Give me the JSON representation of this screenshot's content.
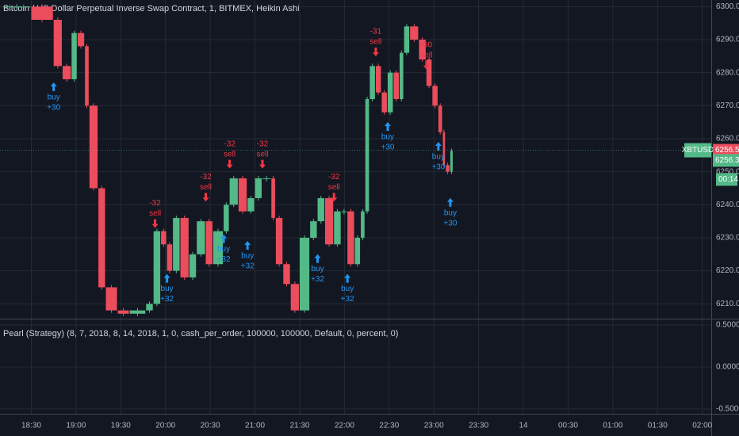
{
  "chart_data": {
    "type": "candlestick",
    "title": "Bitcoin / US Dollar Perpetual Inverse Swap Contract, 1, BITMEX, Heikin Ashi",
    "x": [
      1091,
      1110,
      1125,
      1131,
      1137,
      1141,
      1146,
      1149,
      1155,
      1160,
      1168,
      1176,
      1187,
      1192,
      1197,
      1201,
      1205,
      1210,
      1216,
      1221,
      1227,
      1232,
      1239,
      1243,
      1249,
      1255,
      1260,
      1265,
      1271,
      1274,
      1279,
      1284,
      1290,
      1297,
      1302,
      1307,
      1313,
      1318,
      1322,
      1327,
      1331,
      1334,
      1337,
      1341,
      1345,
      1349,
      1353,
      1357,
      1360,
      1364,
      1370,
      1375,
      1379,
      1383,
      1386,
      1388,
      1391
    ],
    "series": [
      {
        "name": "XBTUSD",
        "up_color": "#53b987",
        "down_color": "#eb4d5c",
        "values": [
          6300,
          6296,
          6282,
          6278,
          6292,
          6288,
          6270,
          6245,
          6215,
          6208,
          6207,
          6208,
          6210,
          6232,
          6228,
          6220,
          6236,
          6218,
          6225,
          6235,
          6222,
          6232,
          6240,
          6248,
          6238,
          6242,
          6248,
          6248,
          6236,
          6222,
          6216,
          6208,
          6230,
          6235,
          6242,
          6228,
          6238,
          6238,
          6222,
          6230,
          6238,
          6272,
          6282,
          6274,
          6268,
          6280,
          6272,
          6286,
          6294,
          6290,
          6284,
          6276,
          6270,
          6262,
          6252,
          6250,
          6256.3
        ]
      }
    ],
    "xlim": [
      1089,
      1566
    ],
    "xticks": [
      {
        "value": 1110,
        "label": "18:30"
      },
      {
        "value": 1140,
        "label": "19:00"
      },
      {
        "value": 1170,
        "label": "19:30"
      },
      {
        "value": 1200,
        "label": "20:00"
      },
      {
        "value": 1230,
        "label": "20:30"
      },
      {
        "value": 1260,
        "label": "21:00"
      },
      {
        "value": 1290,
        "label": "21:30"
      },
      {
        "value": 1320,
        "label": "22:00"
      },
      {
        "value": 1350,
        "label": "22:30"
      },
      {
        "value": 1380,
        "label": "23:00"
      },
      {
        "value": 1410,
        "label": "23:30"
      },
      {
        "value": 1440,
        "label": "14"
      },
      {
        "value": 1470,
        "label": "00:30"
      },
      {
        "value": 1500,
        "label": "01:00"
      },
      {
        "value": 1530,
        "label": "01:30"
      },
      {
        "value": 1560,
        "label": "02:00"
      }
    ],
    "ylim": [
      6205.5,
      6302
    ],
    "yticks": [
      {
        "value": 6210,
        "label": "6210.0"
      },
      {
        "value": 6220,
        "label": "6220.0"
      },
      {
        "value": 6230,
        "label": "6230.0"
      },
      {
        "value": 6240,
        "label": "6240.0"
      },
      {
        "value": 6250,
        "label": "6250.0"
      },
      {
        "value": 6260,
        "label": "6260.0"
      },
      {
        "value": 6270,
        "label": "6270.0"
      },
      {
        "value": 6280,
        "label": "6280.0"
      },
      {
        "value": 6290,
        "label": "6290.0"
      },
      {
        "value": 6300,
        "label": "6300.0"
      }
    ],
    "grid": true,
    "price_tags": [
      {
        "value": 6256.5,
        "color": "#eb4d5c"
      },
      {
        "value": 6256.3,
        "color": "#53b987"
      }
    ],
    "countdown": "00:14",
    "buy_color": "#2196f3",
    "sell_color": "#f23645",
    "signals": [
      {
        "side": "buy",
        "qty": {
          "value": 30,
          "label": "+30"
        },
        "x": 1125,
        "price": 6278
      },
      {
        "side": "sell",
        "qty": -32,
        "x": 1193,
        "price": 6232
      },
      {
        "side": "buy",
        "qty": {
          "value": 32,
          "label": "+32"
        },
        "x": 1201,
        "price": 6220
      },
      {
        "side": "sell",
        "qty": -32,
        "x": 1227,
        "price": 6240
      },
      {
        "side": "buy",
        "qty": {
          "value": 32,
          "label": "+32"
        },
        "x": 1239,
        "price": 6232
      },
      {
        "side": "sell",
        "qty": -32,
        "x": 1243,
        "price": 6250
      },
      {
        "side": "buy",
        "qty": {
          "value": 32,
          "label": "+32"
        },
        "x": 1255,
        "price": 6230
      },
      {
        "side": "sell",
        "qty": -32,
        "x": 1265,
        "price": 6250
      },
      {
        "side": "buy",
        "qty": {
          "value": 32,
          "label": "+32"
        },
        "x": 1302,
        "price": 6226
      },
      {
        "side": "sell",
        "qty": -32,
        "x": 1313,
        "price": 6240
      },
      {
        "side": "buy",
        "qty": {
          "value": 32,
          "label": "+32"
        },
        "x": 1322,
        "price": 6220
      },
      {
        "side": "sell",
        "qty": -31,
        "x": 1341,
        "price": 6284
      },
      {
        "side": "buy",
        "qty": {
          "value": 30,
          "label": "+30"
        },
        "x": 1349,
        "price": 6266
      },
      {
        "side": "sell",
        "qty": -30,
        "x": 1375,
        "price": 6280
      },
      {
        "side": "buy",
        "qty": {
          "value": 30,
          "label": "+30"
        },
        "x": 1383,
        "price": 6260
      },
      {
        "side": "buy",
        "qty": {
          "value": 30,
          "label": "+30"
        },
        "x": 1391,
        "price": 6243
      }
    ],
    "indicator": {
      "title": "Pearl (Strategy) (8, 7, 2018, 8, 14, 2018, 1, 0, cash_per_order, 100000, 100000, Default, 0, percent, 0)",
      "ylim": [
        -0.557,
        0.566
      ],
      "yticks": [
        {
          "value": 0.5,
          "label": "0.5000"
        },
        {
          "value": 0,
          "label": "0.0000"
        },
        {
          "value": -0.5,
          "label": "-0.5000"
        }
      ]
    }
  }
}
